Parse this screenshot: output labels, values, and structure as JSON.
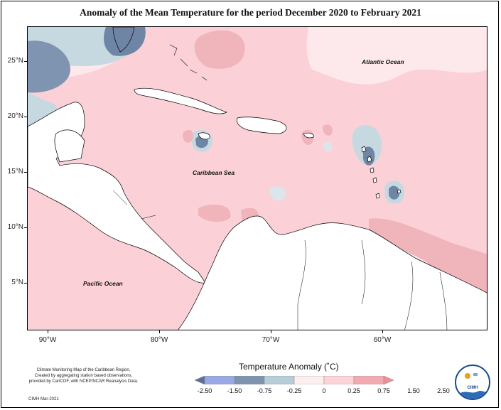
{
  "title": "Anomaly of the Mean Temperature for the period December 2020 to February 2021",
  "map": {
    "lat_labels": [
      "25°N",
      "20°N",
      "15°N",
      "10°N",
      "5°N"
    ],
    "lon_labels": [
      "90°W",
      "80°W",
      "70°W",
      "60°W"
    ],
    "ocean_labels": {
      "atlantic": "Atlantic Ocean",
      "caribbean": "Caribbean Sea",
      "pacific": "Pacific Ocean"
    }
  },
  "legend": {
    "title": "Temperature Anomaly (˚C)",
    "labels": [
      "-2.50",
      "-1.50",
      "-0.75",
      "-0.25",
      "0",
      "0.25",
      "0.75",
      "1.50",
      "2.50"
    ],
    "colors": [
      "#5b6f98",
      "#9aa8e6",
      "#7e93ad",
      "#b7cdd8",
      "#fdeef0",
      "#fbd3d9",
      "#f2aab1",
      "#ee8f95"
    ]
  },
  "credits": {
    "line1": "Climate Monitoring Map of the Caribbean Region,",
    "line2": "Created by aggregating station based observations,",
    "line3": "provided by CariCOF, with NCEP/NCAR Reanalysis Data.",
    "line4": "CIMH  Mar-2021"
  },
  "logo": {
    "text": "CIMH"
  }
}
